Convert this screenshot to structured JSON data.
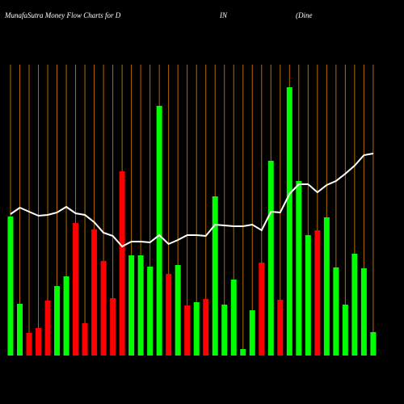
{
  "chart_data": {
    "type": "bar",
    "title_parts": [
      "MunafaSutra  Money Flow  Charts for D",
      "IN",
      "(Dine"
    ],
    "series": [
      {
        "type": "bar",
        "values": [
          172,
          64,
          28,
          34,
          68,
          86,
          98,
          164,
          40,
          156,
          117,
          71,
          228,
          124,
          124,
          110,
          309,
          101,
          112,
          62,
          66,
          70,
          197,
          63,
          94,
          8,
          56,
          115,
          241,
          69,
          332,
          216,
          149,
          155,
          171,
          109,
          63,
          126,
          108,
          29
        ],
        "colors": [
          "#00ff00",
          "#00ff00",
          "#ff0000",
          "#ff0000",
          "#ff0000",
          "#00ff00",
          "#00ff00",
          "#ff0000",
          "#ff0000",
          "#ff0000",
          "#ff0000",
          "#ff0000",
          "#ff0000",
          "#00ff00",
          "#00ff00",
          "#00ff00",
          "#00ff00",
          "#ff0000",
          "#00ff00",
          "#ff0000",
          "#00ff00",
          "#ff0000",
          "#00ff00",
          "#00ff00",
          "#00ff00",
          "#00ff00",
          "#00ff00",
          "#ff0000",
          "#00ff00",
          "#ff0000",
          "#00ff00",
          "#00ff00",
          "#00ff00",
          "#ff0000",
          "#00ff00",
          "#00ff00",
          "#00ff00",
          "#00ff00",
          "#00ff00",
          "#00ff00"
        ]
      },
      {
        "type": "line",
        "color": "#ffffff",
        "values": [
          175,
          183,
          178,
          173,
          174,
          177,
          184,
          176,
          174,
          165,
          152,
          148,
          135,
          141,
          141,
          140,
          149,
          138,
          143,
          149,
          149,
          148,
          162,
          161,
          160,
          160,
          162,
          155,
          178,
          177,
          200,
          212,
          212,
          202,
          211,
          216,
          225,
          235,
          248,
          250
        ]
      }
    ],
    "ylim": [
      0,
      360
    ],
    "grid_color": "#b36b00"
  }
}
